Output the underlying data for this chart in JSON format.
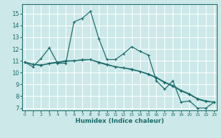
{
  "title": "",
  "xlabel": "Humidex (Indice chaleur)",
  "x_ticks": [
    0,
    1,
    2,
    3,
    4,
    5,
    6,
    7,
    8,
    9,
    10,
    11,
    12,
    13,
    14,
    15,
    16,
    17,
    18,
    19,
    20,
    21,
    22,
    23
  ],
  "y_ticks": [
    7,
    8,
    9,
    10,
    11,
    12,
    13,
    14,
    15
  ],
  "ylim": [
    6.8,
    15.8
  ],
  "xlim": [
    -0.3,
    23.3
  ],
  "bg_color": "#cce8e8",
  "grid_color": "#ffffff",
  "line_color": "#1a6b6b",
  "line1_x": [
    0,
    1,
    2,
    3,
    4,
    5,
    6,
    7,
    8,
    9,
    10,
    11,
    12,
    13,
    14,
    15,
    16,
    17,
    18,
    19,
    20,
    21,
    22,
    23
  ],
  "line1_y": [
    10.9,
    10.5,
    11.2,
    12.1,
    10.8,
    10.8,
    14.3,
    14.6,
    15.2,
    12.9,
    11.1,
    11.1,
    11.6,
    12.2,
    11.8,
    11.5,
    9.3,
    8.6,
    9.3,
    7.5,
    7.6,
    7.0,
    7.0,
    7.5
  ],
  "line2_x": [
    0,
    1,
    2,
    3,
    4,
    5,
    6,
    7,
    8,
    9,
    10,
    11,
    12,
    13,
    14,
    15,
    16,
    17,
    18,
    19,
    20,
    21,
    22,
    23
  ],
  "line2_y": [
    10.9,
    10.7,
    10.6,
    10.8,
    10.9,
    11.0,
    11.0,
    11.1,
    11.1,
    10.9,
    10.7,
    10.5,
    10.4,
    10.3,
    10.1,
    9.9,
    9.6,
    9.2,
    8.9,
    8.5,
    8.2,
    7.8,
    7.6,
    7.5
  ],
  "line3_x": [
    0,
    1,
    2,
    3,
    4,
    5,
    6,
    7,
    8,
    9,
    10,
    11,
    12,
    13,
    14,
    15,
    16,
    17,
    18,
    19,
    20,
    21,
    22,
    23
  ],
  "line3_y": [
    10.9,
    10.7,
    10.65,
    10.75,
    10.85,
    10.95,
    11.0,
    11.05,
    11.1,
    10.85,
    10.65,
    10.5,
    10.4,
    10.25,
    10.1,
    9.85,
    9.55,
    9.15,
    8.85,
    8.45,
    8.15,
    7.75,
    7.55,
    7.5
  ],
  "marker": "+"
}
